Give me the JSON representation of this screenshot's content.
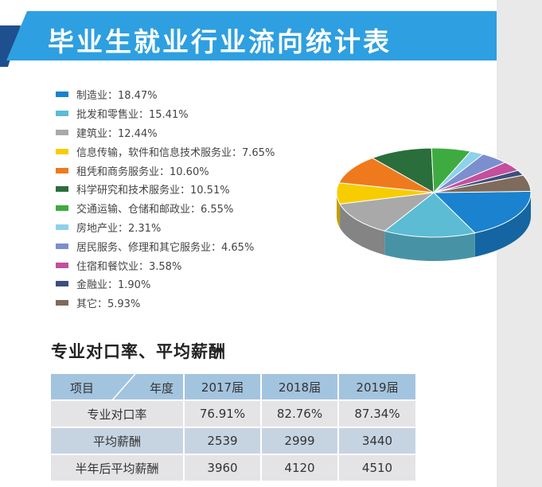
{
  "title": "毕业生就业行业流向统计表",
  "legend": [
    {
      "label": "制造业：18.47%",
      "color": "#1a82cf"
    },
    {
      "label": "批发和零售业：15.41%",
      "color": "#5bbcd4"
    },
    {
      "label": "建筑业：12.44%",
      "color": "#a9a9a9"
    },
    {
      "label": "信息传输，软件和信息技术服务业：7.65%",
      "color": "#f7cd00"
    },
    {
      "label": "租凭和商务服务业：10.60%",
      "color": "#ef7a1e"
    },
    {
      "label": "科学研究和技术服务业：10.51%",
      "color": "#2a6e3c"
    },
    {
      "label": "交通运输、仓储和邮政业：6.55%",
      "color": "#3eab41"
    },
    {
      "label": "房地产业：2.31%",
      "color": "#8ed1ea"
    },
    {
      "label": "居民服务、修理和其它服务业：4.65%",
      "color": "#7b8fcf"
    },
    {
      "label": "住宿和餐饮业：3.58%",
      "color": "#c44f9b"
    },
    {
      "label": "金融业：1.90%",
      "color": "#3c4f7d"
    },
    {
      "label": "其它：5.93%",
      "color": "#7e6b5b"
    }
  ],
  "chart_data": {
    "type": "pie",
    "categories": [
      "制造业",
      "批发和零售业",
      "建筑业",
      "信息传输，软件和信息技术服务业",
      "租凭和商务服务业",
      "科学研究和技术服务业",
      "交通运输、仓储和邮政业",
      "房地产业",
      "居民服务、修理和其它服务业",
      "住宿和餐饮业",
      "金融业",
      "其它"
    ],
    "values": [
      18.47,
      15.41,
      12.44,
      7.65,
      10.6,
      10.51,
      6.55,
      2.31,
      4.65,
      3.58,
      1.9,
      5.93
    ],
    "legend_position": "left"
  },
  "section_title": "专业对口率、平均薪酬",
  "table": {
    "corner_item": "项目",
    "corner_year": "年度",
    "years": [
      "2017届",
      "2018届",
      "2019届"
    ],
    "rows": [
      {
        "label": "专业对口率",
        "values": [
          "76.91%",
          "82.76%",
          "87.34%"
        ]
      },
      {
        "label": "平均薪酬",
        "values": [
          "2539",
          "2999",
          "3440"
        ]
      },
      {
        "label": "半年后平均薪酬",
        "values": [
          "3960",
          "4120",
          "4510"
        ]
      }
    ]
  }
}
